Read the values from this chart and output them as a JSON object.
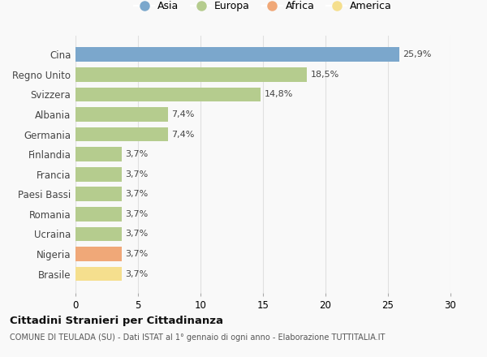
{
  "categories": [
    "Brasile",
    "Nigeria",
    "Ucraina",
    "Romania",
    "Paesi Bassi",
    "Francia",
    "Finlandia",
    "Germania",
    "Albania",
    "Svizzera",
    "Regno Unito",
    "Cina"
  ],
  "values": [
    3.7,
    3.7,
    3.7,
    3.7,
    3.7,
    3.7,
    3.7,
    7.4,
    7.4,
    14.8,
    18.5,
    25.9
  ],
  "labels": [
    "3,7%",
    "3,7%",
    "3,7%",
    "3,7%",
    "3,7%",
    "3,7%",
    "3,7%",
    "7,4%",
    "7,4%",
    "14,8%",
    "18,5%",
    "25,9%"
  ],
  "colors": [
    "#f5df8e",
    "#f0a878",
    "#b5cc8e",
    "#b5cc8e",
    "#b5cc8e",
    "#b5cc8e",
    "#b5cc8e",
    "#b5cc8e",
    "#b5cc8e",
    "#b5cc8e",
    "#b5cc8e",
    "#7ba7cc"
  ],
  "legend": [
    {
      "label": "Asia",
      "color": "#7ba7cc"
    },
    {
      "label": "Europa",
      "color": "#b5cc8e"
    },
    {
      "label": "Africa",
      "color": "#f0a878"
    },
    {
      "label": "America",
      "color": "#f5df8e"
    }
  ],
  "xlim": [
    0,
    30
  ],
  "xticks": [
    0,
    5,
    10,
    15,
    20,
    25,
    30
  ],
  "title": "Cittadini Stranieri per Cittadinanza",
  "subtitle": "COMUNE DI TEULADA (SU) - Dati ISTAT al 1° gennaio di ogni anno - Elaborazione TUTTITALIA.IT",
  "background_color": "#f9f9f9",
  "bar_height": 0.72,
  "grid_color": "#e0e0e0"
}
